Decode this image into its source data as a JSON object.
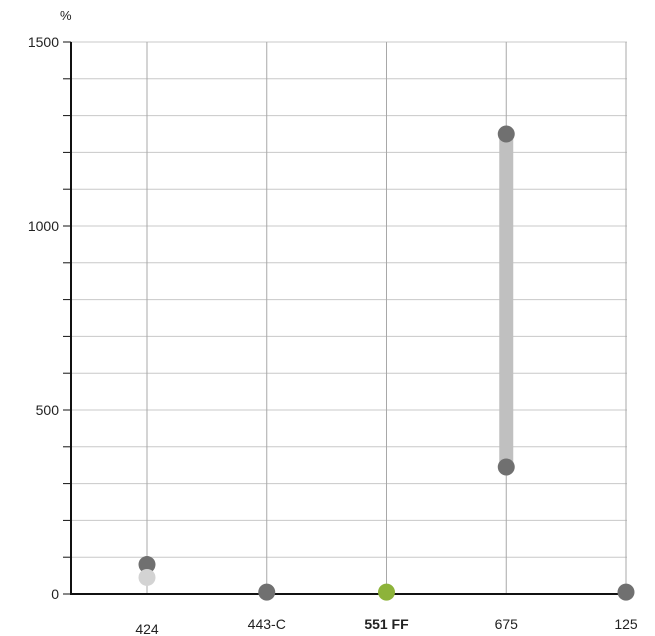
{
  "chart_data": {
    "type": "scatter",
    "title": "",
    "xlabel": "",
    "ylabel": "",
    "y_unit": "%",
    "ylim": [
      0,
      1500
    ],
    "y_ticks": [
      0,
      500,
      1000,
      1500
    ],
    "y_tick_labels": [
      "0",
      "500",
      "1000",
      "1500"
    ],
    "y_minor_step": 100,
    "grid": true,
    "categories": [
      "424",
      "443-C",
      "551 FF",
      "675",
      "125"
    ],
    "highlight_category": "551 FF",
    "ranges": [
      {
        "category": "675",
        "low": 345,
        "high": 1250
      }
    ],
    "points": [
      {
        "category": "424",
        "value": 80,
        "color": "#707070"
      },
      {
        "category": "424",
        "value": 45,
        "color": "#d3d3d3"
      },
      {
        "category": "443-C",
        "value": 5,
        "color": "#707070"
      },
      {
        "category": "551 FF",
        "value": 5,
        "color": "#8db33a"
      },
      {
        "category": "675",
        "value": 1250,
        "color": "#707070"
      },
      {
        "category": "675",
        "value": 345,
        "color": "#707070"
      },
      {
        "category": "125",
        "value": 5,
        "color": "#707070"
      }
    ],
    "colors": {
      "axis": "#111111",
      "grid": "#c8c8c8",
      "range_bar": "#c0c0c0"
    }
  }
}
